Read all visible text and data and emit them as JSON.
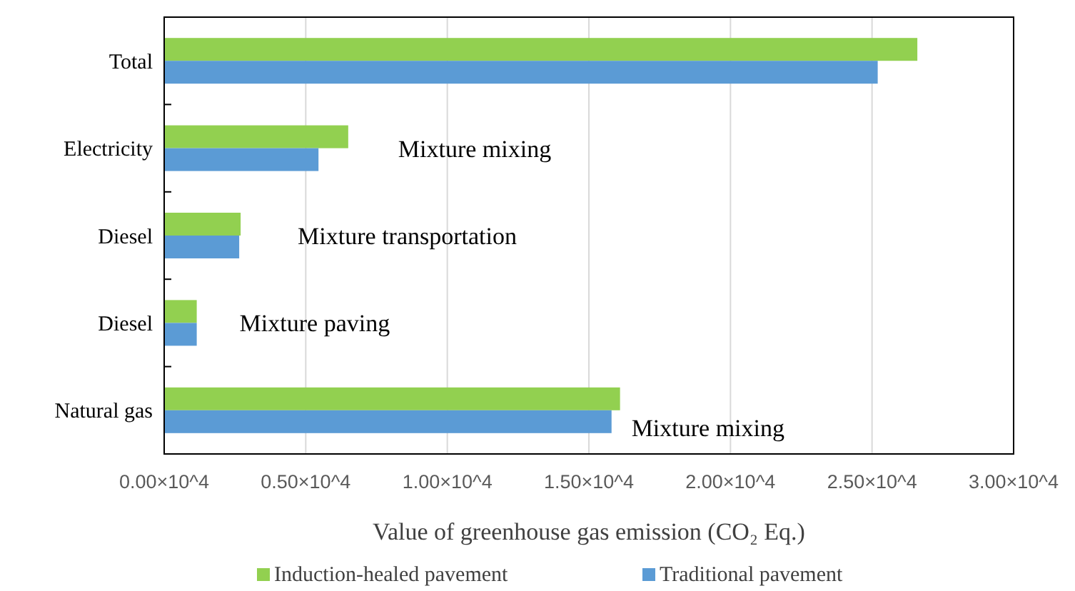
{
  "chart_data": {
    "type": "bar",
    "orientation": "horizontal",
    "xlabel": "Value of greenhouse gas emission (CO₂ Eq.)",
    "categories": [
      "Total",
      "Electricity",
      "Diesel",
      "Diesel",
      "Natural gas"
    ],
    "series": [
      {
        "name": "Induction-healed pavement",
        "color": "#92d050",
        "values": [
          26600,
          6500,
          2700,
          1150,
          16100
        ]
      },
      {
        "name": "Traditional pavement",
        "color": "#5b9bd5",
        "values": [
          25200,
          5450,
          2650,
          1150,
          15800
        ]
      }
    ],
    "xlim": [
      0,
      30000
    ],
    "xticks": [
      {
        "value": 0,
        "label": "0.00×10^4"
      },
      {
        "value": 5000,
        "label": "0.50×10^4"
      },
      {
        "value": 10000,
        "label": "1.00×10^4"
      },
      {
        "value": 15000,
        "label": "1.50×10^4"
      },
      {
        "value": 20000,
        "label": "2.00×10^4"
      },
      {
        "value": 25000,
        "label": "2.50×10^4"
      },
      {
        "value": 30000,
        "label": "3.00×10^4"
      }
    ],
    "grid": "x",
    "legend": "bottom",
    "annotations": [
      "Mixture mixing",
      "Mixture transportation",
      "Mixture paving",
      "Mixture mixing"
    ]
  }
}
